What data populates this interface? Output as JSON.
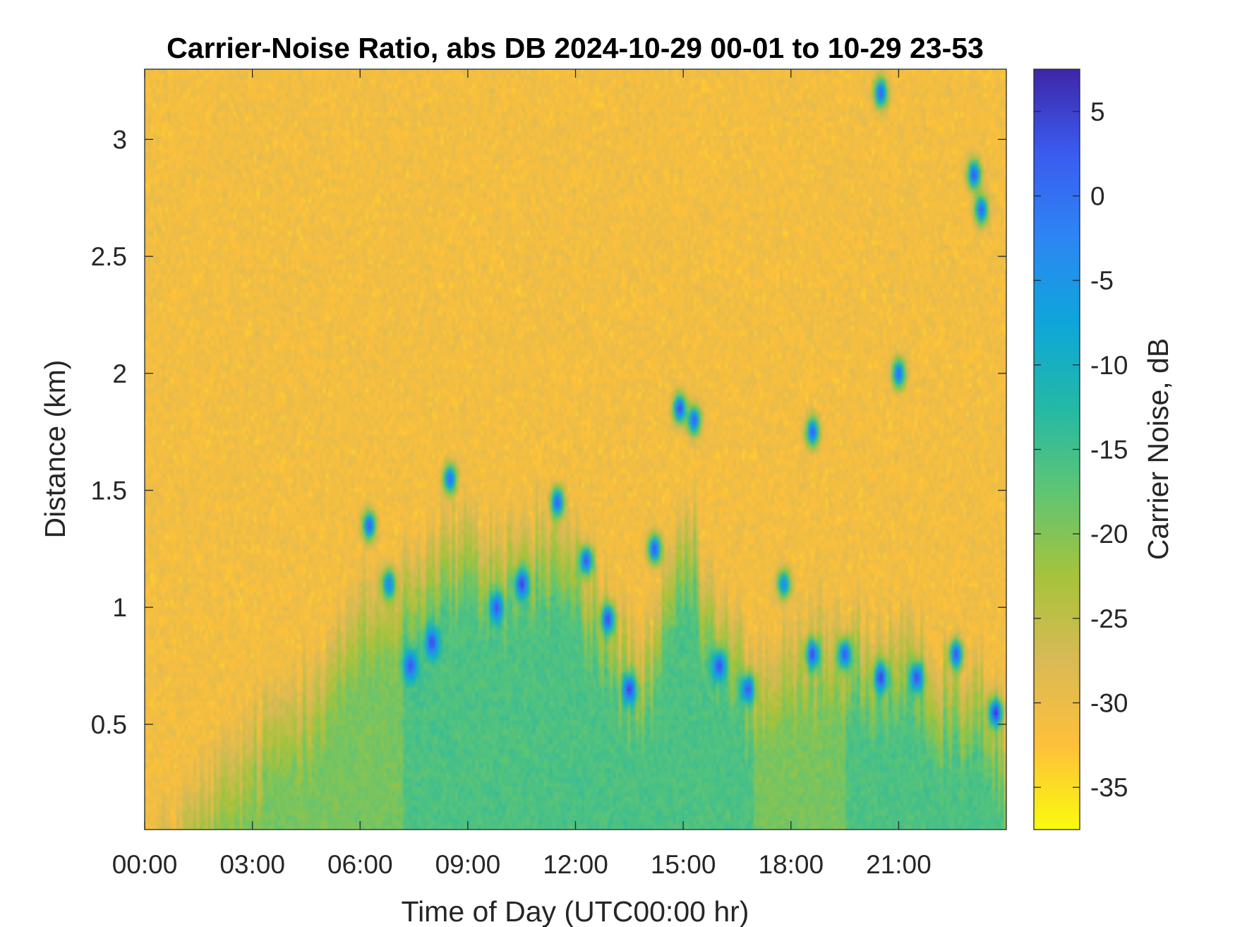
{
  "chart_data": {
    "type": "heatmap",
    "title": "Carrier-Noise Ratio, abs DB 2024-10-29 00-01 to 10-29 23-53",
    "xlabel": "Time of Day (UTC00:00 hr)",
    "ylabel": "Distance (km)",
    "x_units": "hours of day",
    "xlim": [
      0,
      24
    ],
    "ylim": [
      0.05,
      3.3
    ],
    "x_ticks": [
      0,
      3,
      6,
      9,
      12,
      15,
      18,
      21
    ],
    "x_tick_labels": [
      "00:00",
      "03:00",
      "06:00",
      "09:00",
      "12:00",
      "15:00",
      "18:00",
      "21:00"
    ],
    "y_ticks": [
      0.5,
      1,
      1.5,
      2,
      2.5,
      3
    ],
    "y_tick_labels": [
      "0.5",
      "1",
      "1.5",
      "2",
      "2.5",
      "3"
    ],
    "colorbar": {
      "label": "Carrier Noise, dB",
      "limits": [
        -37.5,
        7.5
      ],
      "ticks": [
        5,
        0,
        -5,
        -10,
        -15,
        -20,
        -25,
        -30,
        -35
      ],
      "tick_labels": [
        "5",
        "0",
        "-5",
        "-10",
        "-15",
        "-20",
        "-25",
        "-30",
        "-35"
      ],
      "colormap": "parula",
      "colormap_stops": [
        "#f9fb0e",
        "#fec03a",
        "#d9ba56",
        "#a6c33b",
        "#5fc574",
        "#23b9a6",
        "#0ea6da",
        "#2d86f4",
        "#3a5cf0",
        "#3e26a8"
      ]
    },
    "background_value": -31,
    "boundary_layer_top_km": [
      [
        0,
        0.05
      ],
      [
        3,
        0.6
      ],
      [
        5,
        0.95
      ],
      [
        6,
        1.15
      ],
      [
        7.2,
        1.3
      ],
      [
        8.5,
        1.45
      ],
      [
        10,
        1.4
      ],
      [
        11.5,
        1.5
      ],
      [
        13,
        1.1
      ],
      [
        14,
        0.9
      ],
      [
        15,
        1.5
      ],
      [
        16,
        1.1
      ],
      [
        17,
        0.9
      ],
      [
        18,
        0.95
      ],
      [
        19,
        1.1
      ],
      [
        20,
        1.0
      ],
      [
        21,
        0.95
      ],
      [
        22,
        0.9
      ],
      [
        23,
        0.85
      ],
      [
        24,
        0.6
      ]
    ],
    "cloud_features": [
      {
        "t": 6.25,
        "d": 1.35,
        "v": 2
      },
      {
        "t": 6.8,
        "d": 1.1,
        "v": -2
      },
      {
        "t": 7.4,
        "d": 0.75,
        "v": 3
      },
      {
        "t": 8.0,
        "d": 0.85,
        "v": 4
      },
      {
        "t": 8.5,
        "d": 1.55,
        "v": 1
      },
      {
        "t": 9.8,
        "d": 1.0,
        "v": 3
      },
      {
        "t": 10.5,
        "d": 1.1,
        "v": 5
      },
      {
        "t": 11.5,
        "d": 1.45,
        "v": 2
      },
      {
        "t": 12.3,
        "d": 1.2,
        "v": 3
      },
      {
        "t": 12.9,
        "d": 0.95,
        "v": 4
      },
      {
        "t": 13.5,
        "d": 0.65,
        "v": 5
      },
      {
        "t": 14.2,
        "d": 1.25,
        "v": 3
      },
      {
        "t": 14.9,
        "d": 1.85,
        "v": 4
      },
      {
        "t": 15.3,
        "d": 1.8,
        "v": 2
      },
      {
        "t": 16.0,
        "d": 0.75,
        "v": 4
      },
      {
        "t": 16.8,
        "d": 0.65,
        "v": 3
      },
      {
        "t": 17.8,
        "d": 1.1,
        "v": -3
      },
      {
        "t": 18.6,
        "d": 1.75,
        "v": 2
      },
      {
        "t": 18.6,
        "d": 0.8,
        "v": 4
      },
      {
        "t": 19.5,
        "d": 0.8,
        "v": 3
      },
      {
        "t": 20.5,
        "d": 0.7,
        "v": 5
      },
      {
        "t": 20.5,
        "d": 3.2,
        "v": 2
      },
      {
        "t": 21.0,
        "d": 2.0,
        "v": 1
      },
      {
        "t": 21.5,
        "d": 0.7,
        "v": 4
      },
      {
        "t": 22.6,
        "d": 0.8,
        "v": 3
      },
      {
        "t": 23.1,
        "d": 2.85,
        "v": 3
      },
      {
        "t": 23.3,
        "d": 2.7,
        "v": 2
      },
      {
        "t": 23.7,
        "d": 0.55,
        "v": 6
      }
    ],
    "grid": false,
    "legend": "colorbar-right"
  }
}
